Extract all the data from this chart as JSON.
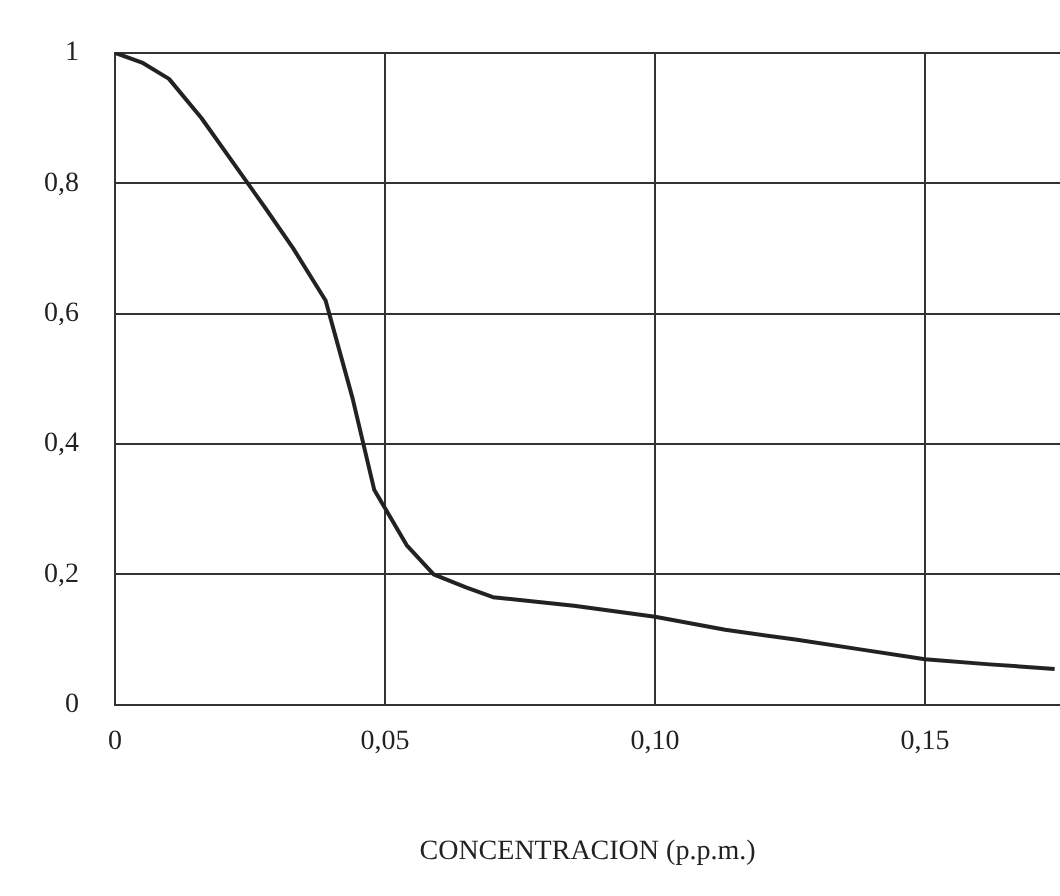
{
  "chart_data": {
    "type": "line",
    "xlabel": "CONCENTRACION (p.p.m.)",
    "x": [
      0,
      0.005,
      0.01,
      0.016,
      0.022,
      0.028,
      0.033,
      0.039,
      0.044,
      0.048,
      0.054,
      0.059,
      0.065,
      0.07,
      0.085,
      0.1,
      0.113,
      0.126,
      0.138,
      0.15,
      0.162,
      0.174
    ],
    "series": [
      {
        "color": "#222222",
        "values": [
          1,
          0.985,
          0.96,
          0.9,
          0.83,
          0.76,
          0.7,
          0.62,
          0.47,
          0.33,
          0.245,
          0.2,
          0.18,
          0.165,
          0.152,
          0.135,
          0.115,
          0.1,
          0.085,
          0.07,
          0.062,
          0.055
        ]
      }
    ],
    "xlim": [
      0,
      0.175
    ],
    "xticks": [
      0,
      {
        "value": 0.05,
        "label": "0,05"
      },
      {
        "value": 0.1,
        "label": "0,10"
      },
      {
        "value": 0.15,
        "label": "0,15"
      }
    ],
    "ylim": [
      0,
      1
    ],
    "yticks": [
      0,
      {
        "value": 0.2,
        "label": "0,2"
      },
      {
        "value": 0.4,
        "label": "0,4"
      },
      {
        "value": 0.6,
        "label": "0,6"
      },
      {
        "value": 0.8,
        "label": "0,8"
      },
      1
    ],
    "grid": true,
    "legend": false,
    "marker": "none",
    "line_style": "solid"
  }
}
